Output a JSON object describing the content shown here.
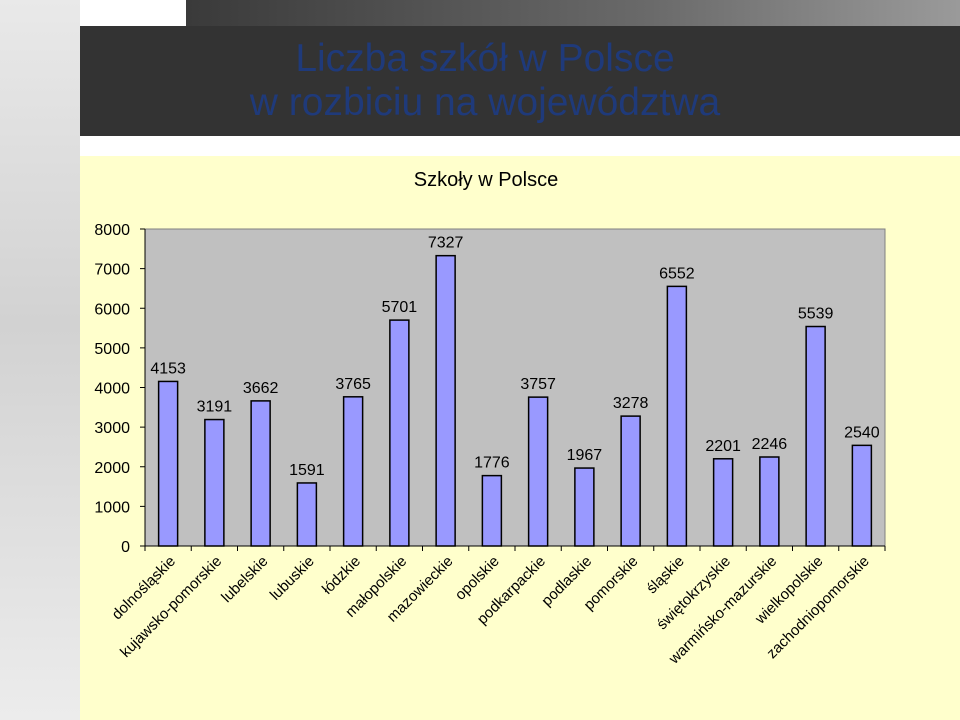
{
  "slide": {
    "title_line1": "Liczba szkół w Polsce",
    "title_line2": "w rozbiciu na województwa"
  },
  "colors": {
    "bar_fill": "#9999ff",
    "plot_bg": "#c0c0c0",
    "panel_bg": "#ffffcc",
    "title_color": "#1f3a7a"
  },
  "chart_data": {
    "type": "bar",
    "title": "Szkoły w Polsce",
    "categories": [
      "dolnośląskie",
      "kujawsko-pomorskie",
      "lubelskie",
      "lubuskie",
      "łódzkie",
      "małopolskie",
      "mazowieckie",
      "opolskie",
      "podkarpackie",
      "podlaskie",
      "pomorskie",
      "śląskie",
      "świętokrzyskie",
      "warmińsko-mazurskie",
      "wielkopolskie",
      "zachodniopomorskie"
    ],
    "values": [
      4153,
      3191,
      3662,
      1591,
      3765,
      5701,
      7327,
      1776,
      3757,
      1967,
      3278,
      6552,
      2201,
      2246,
      5539,
      2540
    ],
    "yticks": [
      0,
      1000,
      2000,
      3000,
      4000,
      5000,
      6000,
      7000,
      8000
    ],
    "ylim": [
      0,
      8000
    ],
    "grid": false,
    "legend": "none",
    "data_labels": true
  }
}
